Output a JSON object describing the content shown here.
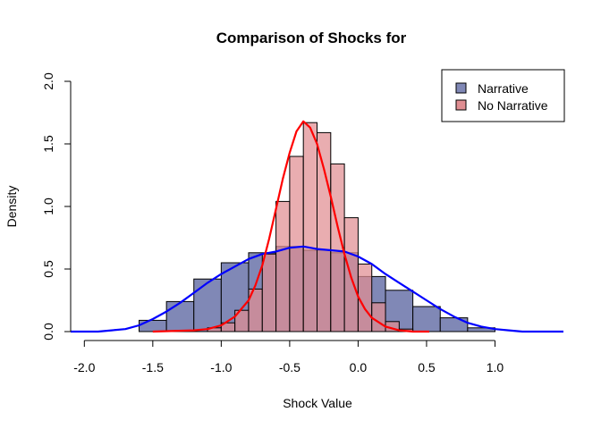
{
  "chart_data": {
    "type": "bar",
    "title": "Comparison of Shocks for",
    "xlabel": "Shock Value",
    "ylabel": "Density",
    "xlim": [
      -2.1,
      1.5
    ],
    "ylim": [
      0,
      2.0
    ],
    "x_ticks": [
      -2.0,
      -1.5,
      -1.0,
      -0.5,
      0.0,
      0.5,
      1.0
    ],
    "x_tick_labels": [
      "-2.0",
      "-1.5",
      "-1.0",
      "-0.5",
      "0.0",
      "0.5",
      "1.0"
    ],
    "y_ticks": [
      0.0,
      0.5,
      1.0,
      1.5,
      2.0
    ],
    "y_tick_labels": [
      "0.0",
      "0.5",
      "1.0",
      "1.5",
      "2.0"
    ],
    "legend": {
      "placement": "top-right",
      "entries": [
        "Narrative",
        "No Narrative"
      ]
    },
    "histograms": [
      {
        "name": "Narrative",
        "color": "#8088b6",
        "border": "#000000",
        "bins": [
          {
            "x0": -1.6,
            "x1": -1.4,
            "density": 0.09
          },
          {
            "x0": -1.4,
            "x1": -1.2,
            "density": 0.24
          },
          {
            "x0": -1.2,
            "x1": -1.0,
            "density": 0.42
          },
          {
            "x0": -1.0,
            "x1": -0.8,
            "density": 0.55
          },
          {
            "x0": -0.8,
            "x1": -0.6,
            "density": 0.63
          },
          {
            "x0": -0.6,
            "x1": -0.4,
            "density": 0.68
          },
          {
            "x0": -0.4,
            "x1": -0.2,
            "density": 0.65
          },
          {
            "x0": -0.2,
            "x1": 0.0,
            "density": 0.63
          },
          {
            "x0": 0.0,
            "x1": 0.2,
            "density": 0.44
          },
          {
            "x0": 0.2,
            "x1": 0.4,
            "density": 0.33
          },
          {
            "x0": 0.4,
            "x1": 0.6,
            "density": 0.2
          },
          {
            "x0": 0.6,
            "x1": 0.8,
            "density": 0.11
          },
          {
            "x0": 0.8,
            "x1": 1.0,
            "density": 0.03
          }
        ]
      },
      {
        "name": "No Narrative",
        "color": "#e08e92",
        "border": "#000000",
        "bins": [
          {
            "x0": -1.1,
            "x1": -1.0,
            "density": 0.03
          },
          {
            "x0": -1.0,
            "x1": -0.9,
            "density": 0.07
          },
          {
            "x0": -0.9,
            "x1": -0.8,
            "density": 0.17
          },
          {
            "x0": -0.8,
            "x1": -0.7,
            "density": 0.34
          },
          {
            "x0": -0.7,
            "x1": -0.6,
            "density": 0.62
          },
          {
            "x0": -0.6,
            "x1": -0.5,
            "density": 1.04
          },
          {
            "x0": -0.5,
            "x1": -0.4,
            "density": 1.4
          },
          {
            "x0": -0.4,
            "x1": -0.3,
            "density": 1.67
          },
          {
            "x0": -0.3,
            "x1": -0.2,
            "density": 1.59
          },
          {
            "x0": -0.2,
            "x1": -0.1,
            "density": 1.34
          },
          {
            "x0": -0.1,
            "x1": 0.0,
            "density": 0.91
          },
          {
            "x0": 0.0,
            "x1": 0.1,
            "density": 0.54
          },
          {
            "x0": 0.1,
            "x1": 0.2,
            "density": 0.23
          },
          {
            "x0": 0.2,
            "x1": 0.3,
            "density": 0.08
          },
          {
            "x0": 0.3,
            "x1": 0.4,
            "density": 0.02
          }
        ]
      }
    ],
    "density_lines": [
      {
        "name": "Narrative",
        "color": "#0000ff",
        "x": [
          -2.1,
          -1.9,
          -1.8,
          -1.7,
          -1.6,
          -1.5,
          -1.4,
          -1.3,
          -1.2,
          -1.1,
          -1.0,
          -0.9,
          -0.8,
          -0.7,
          -0.6,
          -0.5,
          -0.4,
          -0.3,
          -0.2,
          -0.1,
          0.0,
          0.1,
          0.2,
          0.3,
          0.4,
          0.5,
          0.6,
          0.7,
          0.8,
          0.9,
          1.0,
          1.1,
          1.2,
          1.5
        ],
        "y": [
          0.0,
          0.0,
          0.01,
          0.02,
          0.05,
          0.1,
          0.16,
          0.23,
          0.31,
          0.39,
          0.46,
          0.52,
          0.58,
          0.62,
          0.64,
          0.67,
          0.68,
          0.66,
          0.65,
          0.64,
          0.6,
          0.54,
          0.46,
          0.39,
          0.32,
          0.25,
          0.18,
          0.12,
          0.07,
          0.04,
          0.02,
          0.01,
          0.0,
          0.0
        ]
      },
      {
        "name": "No Narrative",
        "color": "#ff0000",
        "x": [
          -1.5,
          -1.2,
          -1.1,
          -1.0,
          -0.9,
          -0.8,
          -0.75,
          -0.7,
          -0.65,
          -0.6,
          -0.55,
          -0.5,
          -0.45,
          -0.4,
          -0.35,
          -0.3,
          -0.25,
          -0.2,
          -0.15,
          -0.1,
          -0.05,
          0.0,
          0.05,
          0.1,
          0.2,
          0.3,
          0.4,
          0.52
        ],
        "y": [
          0.0,
          0.01,
          0.02,
          0.05,
          0.12,
          0.25,
          0.37,
          0.53,
          0.74,
          0.98,
          1.22,
          1.43,
          1.6,
          1.68,
          1.63,
          1.5,
          1.3,
          1.08,
          0.84,
          0.62,
          0.43,
          0.28,
          0.18,
          0.11,
          0.04,
          0.01,
          0.0,
          0.0
        ]
      }
    ]
  }
}
